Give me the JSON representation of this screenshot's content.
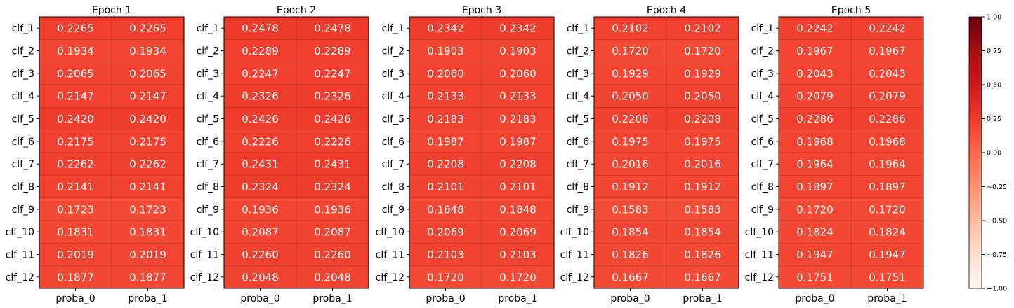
{
  "chart_data": [
    {
      "type": "heatmap",
      "title": "Epoch 1",
      "rows": [
        "clf_1",
        "clf_2",
        "clf_3",
        "clf_4",
        "clf_5",
        "clf_6",
        "clf_7",
        "clf_8",
        "clf_9",
        "clf_10",
        "clf_11",
        "clf_12"
      ],
      "columns": [
        "proba_0",
        "proba_1"
      ],
      "values": [
        [
          0.2265,
          0.2265
        ],
        [
          0.1934,
          0.1934
        ],
        [
          0.2065,
          0.2065
        ],
        [
          0.2147,
          0.2147
        ],
        [
          0.242,
          0.242
        ],
        [
          0.2175,
          0.2175
        ],
        [
          0.2262,
          0.2262
        ],
        [
          0.2141,
          0.2141
        ],
        [
          0.1723,
          0.1723
        ],
        [
          0.1831,
          0.1831
        ],
        [
          0.2019,
          0.2019
        ],
        [
          0.1877,
          0.1877
        ]
      ]
    },
    {
      "type": "heatmap",
      "title": "Epoch 2",
      "rows": [
        "clf_1",
        "clf_2",
        "clf_3",
        "clf_4",
        "clf_5",
        "clf_6",
        "clf_7",
        "clf_8",
        "clf_9",
        "clf_10",
        "clf_11",
        "clf_12"
      ],
      "columns": [
        "proba_0",
        "proba_1"
      ],
      "values": [
        [
          0.2478,
          0.2478
        ],
        [
          0.2289,
          0.2289
        ],
        [
          0.2247,
          0.2247
        ],
        [
          0.2326,
          0.2326
        ],
        [
          0.2426,
          0.2426
        ],
        [
          0.2226,
          0.2226
        ],
        [
          0.2431,
          0.2431
        ],
        [
          0.2324,
          0.2324
        ],
        [
          0.1936,
          0.1936
        ],
        [
          0.2087,
          0.2087
        ],
        [
          0.226,
          0.226
        ],
        [
          0.2048,
          0.2048
        ]
      ]
    },
    {
      "type": "heatmap",
      "title": "Epoch 3",
      "rows": [
        "clf_1",
        "clf_2",
        "clf_3",
        "clf_4",
        "clf_5",
        "clf_6",
        "clf_7",
        "clf_8",
        "clf_9",
        "clf_10",
        "clf_11",
        "clf_12"
      ],
      "columns": [
        "proba_0",
        "proba_1"
      ],
      "values": [
        [
          0.2342,
          0.2342
        ],
        [
          0.1903,
          0.1903
        ],
        [
          0.206,
          0.206
        ],
        [
          0.2133,
          0.2133
        ],
        [
          0.2183,
          0.2183
        ],
        [
          0.1987,
          0.1987
        ],
        [
          0.2208,
          0.2208
        ],
        [
          0.2101,
          0.2101
        ],
        [
          0.1848,
          0.1848
        ],
        [
          0.2069,
          0.2069
        ],
        [
          0.2103,
          0.2103
        ],
        [
          0.172,
          0.172
        ]
      ]
    },
    {
      "type": "heatmap",
      "title": "Epoch 4",
      "rows": [
        "clf_1",
        "clf_2",
        "clf_3",
        "clf_4",
        "clf_5",
        "clf_6",
        "clf_7",
        "clf_8",
        "clf_9",
        "clf_10",
        "clf_11",
        "clf_12"
      ],
      "columns": [
        "proba_0",
        "proba_1"
      ],
      "values": [
        [
          0.2102,
          0.2102
        ],
        [
          0.172,
          0.172
        ],
        [
          0.1929,
          0.1929
        ],
        [
          0.205,
          0.205
        ],
        [
          0.2208,
          0.2208
        ],
        [
          0.1975,
          0.1975
        ],
        [
          0.2016,
          0.2016
        ],
        [
          0.1912,
          0.1912
        ],
        [
          0.1583,
          0.1583
        ],
        [
          0.1854,
          0.1854
        ],
        [
          0.1826,
          0.1826
        ],
        [
          0.1667,
          0.1667
        ]
      ]
    },
    {
      "type": "heatmap",
      "title": "Epoch 5",
      "rows": [
        "clf_1",
        "clf_2",
        "clf_3",
        "clf_4",
        "clf_5",
        "clf_6",
        "clf_7",
        "clf_8",
        "clf_9",
        "clf_10",
        "clf_11",
        "clf_12"
      ],
      "columns": [
        "proba_0",
        "proba_1"
      ],
      "values": [
        [
          0.2242,
          0.2242
        ],
        [
          0.1967,
          0.1967
        ],
        [
          0.2043,
          0.2043
        ],
        [
          0.2079,
          0.2079
        ],
        [
          0.2286,
          0.2286
        ],
        [
          0.1968,
          0.1968
        ],
        [
          0.1964,
          0.1964
        ],
        [
          0.1897,
          0.1897
        ],
        [
          0.172,
          0.172
        ],
        [
          0.1824,
          0.1824
        ],
        [
          0.1947,
          0.1947
        ],
        [
          0.1751,
          0.1751
        ]
      ]
    }
  ],
  "colorbar": {
    "colormap": "Reds",
    "vmin": -1.0,
    "vmax": 1.0,
    "ticks": [
      1.0,
      0.75,
      0.5,
      0.25,
      0.0,
      -0.25,
      -0.5,
      -0.75,
      -1.0
    ],
    "tick_labels": [
      "1.00",
      "0.75",
      "0.50",
      "0.25",
      "0.00",
      "−0.25",
      "−0.50",
      "−0.75",
      "−1.00"
    ]
  },
  "value_format_decimals": 4
}
